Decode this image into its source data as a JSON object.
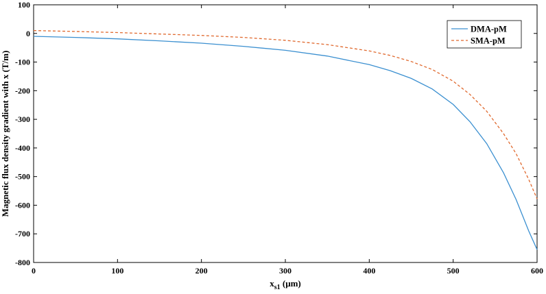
{
  "chart_data": {
    "type": "line",
    "xlabel_main": "x",
    "xlabel_sub": "s1",
    "xlabel_unit": " (μm)",
    "ylabel": "Magnetic flux density gradient with x (T/m)",
    "xlim": [
      0,
      600
    ],
    "ylim": [
      -800,
      100
    ],
    "xticks": [
      0,
      100,
      200,
      300,
      400,
      500,
      600
    ],
    "yticks": [
      100,
      0,
      -100,
      -200,
      -300,
      -400,
      -500,
      -600,
      -700,
      -800
    ],
    "grid": false,
    "legend_position": "top-right",
    "series": [
      {
        "name": "DMA-pM",
        "color": "#3a8fd0",
        "style": "solid",
        "x": [
          0,
          50,
          100,
          150,
          200,
          250,
          300,
          350,
          400,
          425,
          450,
          475,
          500,
          520,
          540,
          560,
          575,
          590,
          600
        ],
        "y": [
          -10,
          -14,
          -19,
          -26,
          -34,
          -45,
          -59,
          -79,
          -109,
          -130,
          -157,
          -194,
          -248,
          -308,
          -385,
          -487,
          -580,
          -690,
          -755
        ]
      },
      {
        "name": "SMA-pM",
        "color": "#e0682d",
        "style": "dashed",
        "x": [
          0,
          50,
          100,
          150,
          200,
          250,
          300,
          350,
          400,
          425,
          450,
          475,
          500,
          520,
          540,
          560,
          575,
          590,
          600
        ],
        "y": [
          10,
          7,
          3,
          -2,
          -7,
          -14,
          -24,
          -39,
          -61,
          -77,
          -98,
          -126,
          -167,
          -213,
          -272,
          -350,
          -420,
          -510,
          -578
        ]
      }
    ]
  }
}
